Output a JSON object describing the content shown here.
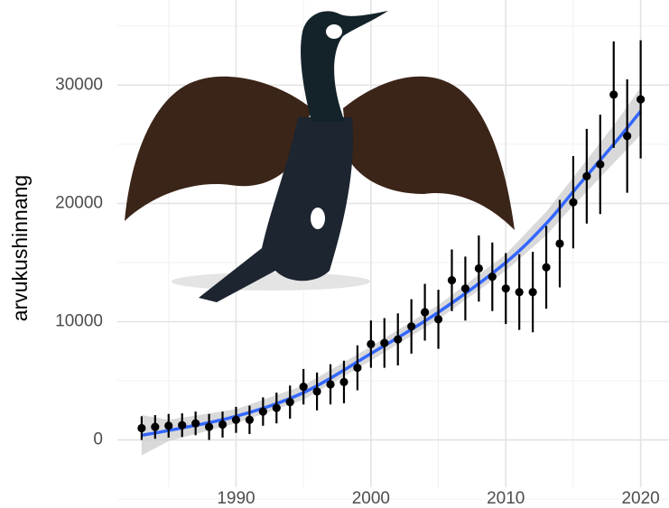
{
  "chart_data": {
    "type": "scatter",
    "y_label": "arvukushinnang",
    "x": [
      1983,
      1984,
      1985,
      1986,
      1987,
      1988,
      1989,
      1990,
      1991,
      1992,
      1993,
      1994,
      1995,
      1996,
      1997,
      1998,
      1999,
      2000,
      2001,
      2002,
      2003,
      2004,
      2005,
      2006,
      2007,
      2008,
      2009,
      2010,
      2011,
      2012,
      2013,
      2014,
      2015,
      2016,
      2017,
      2018,
      2019,
      2020
    ],
    "values": [
      1000,
      1100,
      1200,
      1250,
      1400,
      1100,
      1300,
      1700,
      1700,
      2400,
      2700,
      3200,
      4500,
      4100,
      4700,
      4900,
      6100,
      8100,
      8200,
      8500,
      9600,
      10800,
      10200,
      13500,
      12800,
      14500,
      13800,
      12800,
      12500,
      12500,
      14600,
      16600,
      20100,
      22300,
      23300,
      29200,
      25700,
      28800
    ],
    "errors": [
      1000,
      1000,
      1000,
      1000,
      1000,
      1100,
      1100,
      1100,
      1200,
      1200,
      1300,
      1400,
      1500,
      1600,
      1700,
      1800,
      1900,
      2000,
      2100,
      2200,
      2300,
      2400,
      2500,
      2600,
      2700,
      2800,
      2900,
      3000,
      3200,
      3400,
      3500,
      3700,
      3900,
      4000,
      4200,
      4500,
      4800,
      5000
    ],
    "color": "#000000",
    "smooth": {
      "x": [
        1983,
        1985,
        1990,
        1995,
        2000,
        2005,
        2010,
        2013,
        2015,
        2018,
        2020
      ],
      "values": [
        400,
        800,
        2000,
        4000,
        7300,
        10800,
        15000,
        18300,
        21000,
        25000,
        27800
      ],
      "lower": [
        -1300,
        -100,
        1400,
        3400,
        6700,
        10200,
        14300,
        17300,
        19800,
        23400,
        25800
      ],
      "upper": [
        2100,
        1700,
        2600,
        4600,
        7900,
        11400,
        15700,
        19300,
        22200,
        26600,
        29800
      ],
      "color": "#3366ff",
      "band_color": "#cccccc"
    },
    "xlim": [
      1981.2,
      2022.1
    ],
    "ylim": [
      -4000,
      37200
    ],
    "xticks": [
      1990,
      2000,
      2010,
      2020
    ],
    "yticks": [
      0,
      10000,
      20000,
      30000
    ],
    "x_minor_ticks": [
      1985,
      1995,
      2005,
      2015
    ],
    "y_minor_ticks": [
      -5000,
      5000,
      15000,
      25000,
      35000
    ],
    "grid": true
  }
}
